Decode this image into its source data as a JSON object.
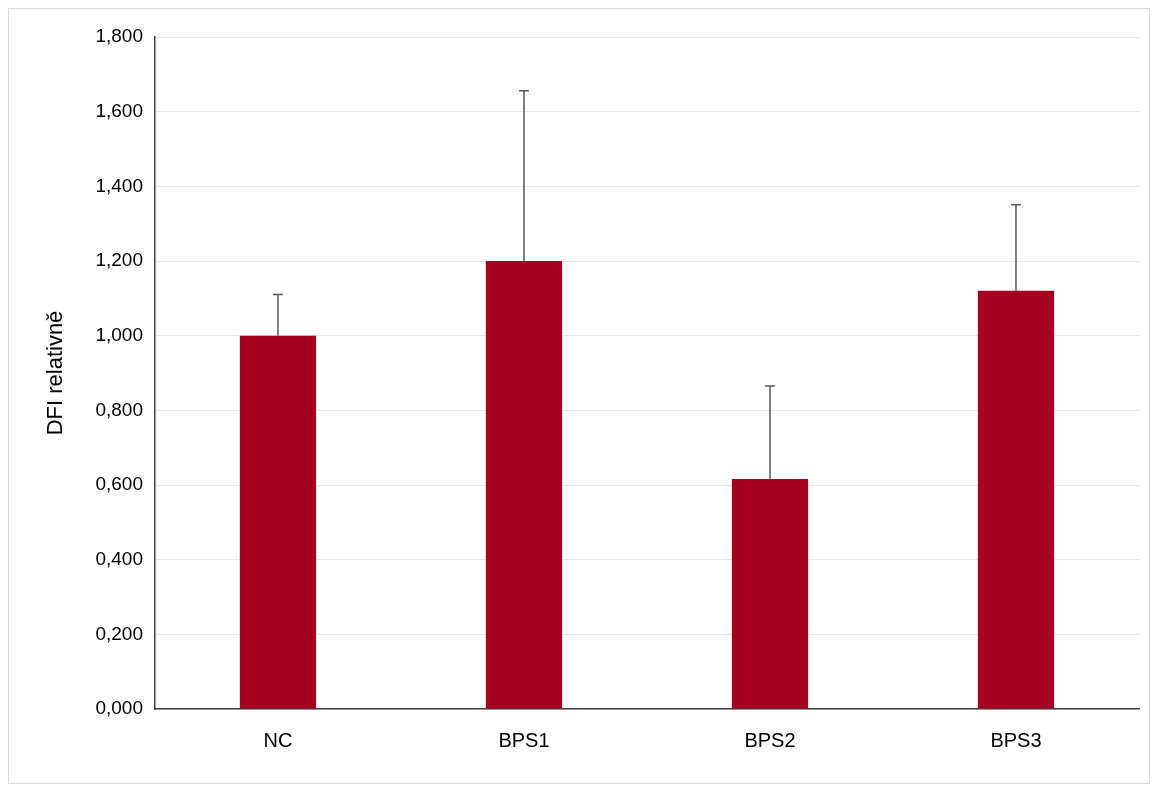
{
  "chart_data": {
    "type": "bar",
    "ylabel": "DFI relativně",
    "categories": [
      "NC",
      "BPS1",
      "BPS2",
      "BPS3"
    ],
    "series": [
      {
        "color": "#a50021",
        "values": [
          1.0,
          1.2,
          0.616,
          1.12
        ],
        "errors": [
          [
            1.0,
            1.11
          ],
          [
            1.2,
            1.656
          ],
          [
            0.616,
            0.865
          ],
          [
            1.12,
            1.351
          ]
        ]
      }
    ],
    "ylim": [
      0,
      1.8
    ],
    "yticks": [
      {
        "value": 0,
        "label": "0,000"
      },
      {
        "value": 0.2,
        "label": "0,200"
      },
      {
        "value": 0.4,
        "label": "0,400"
      },
      {
        "value": 0.6,
        "label": "0,600"
      },
      {
        "value": 0.8,
        "label": "0,800"
      },
      {
        "value": 1.0,
        "label": "1,000"
      },
      {
        "value": 1.2,
        "label": "1,200"
      },
      {
        "value": 1.4,
        "label": "1,400"
      },
      {
        "value": 1.6,
        "label": "1,600"
      },
      {
        "value": 1.8,
        "label": "1,800"
      }
    ],
    "grid": "y",
    "legend": false
  }
}
